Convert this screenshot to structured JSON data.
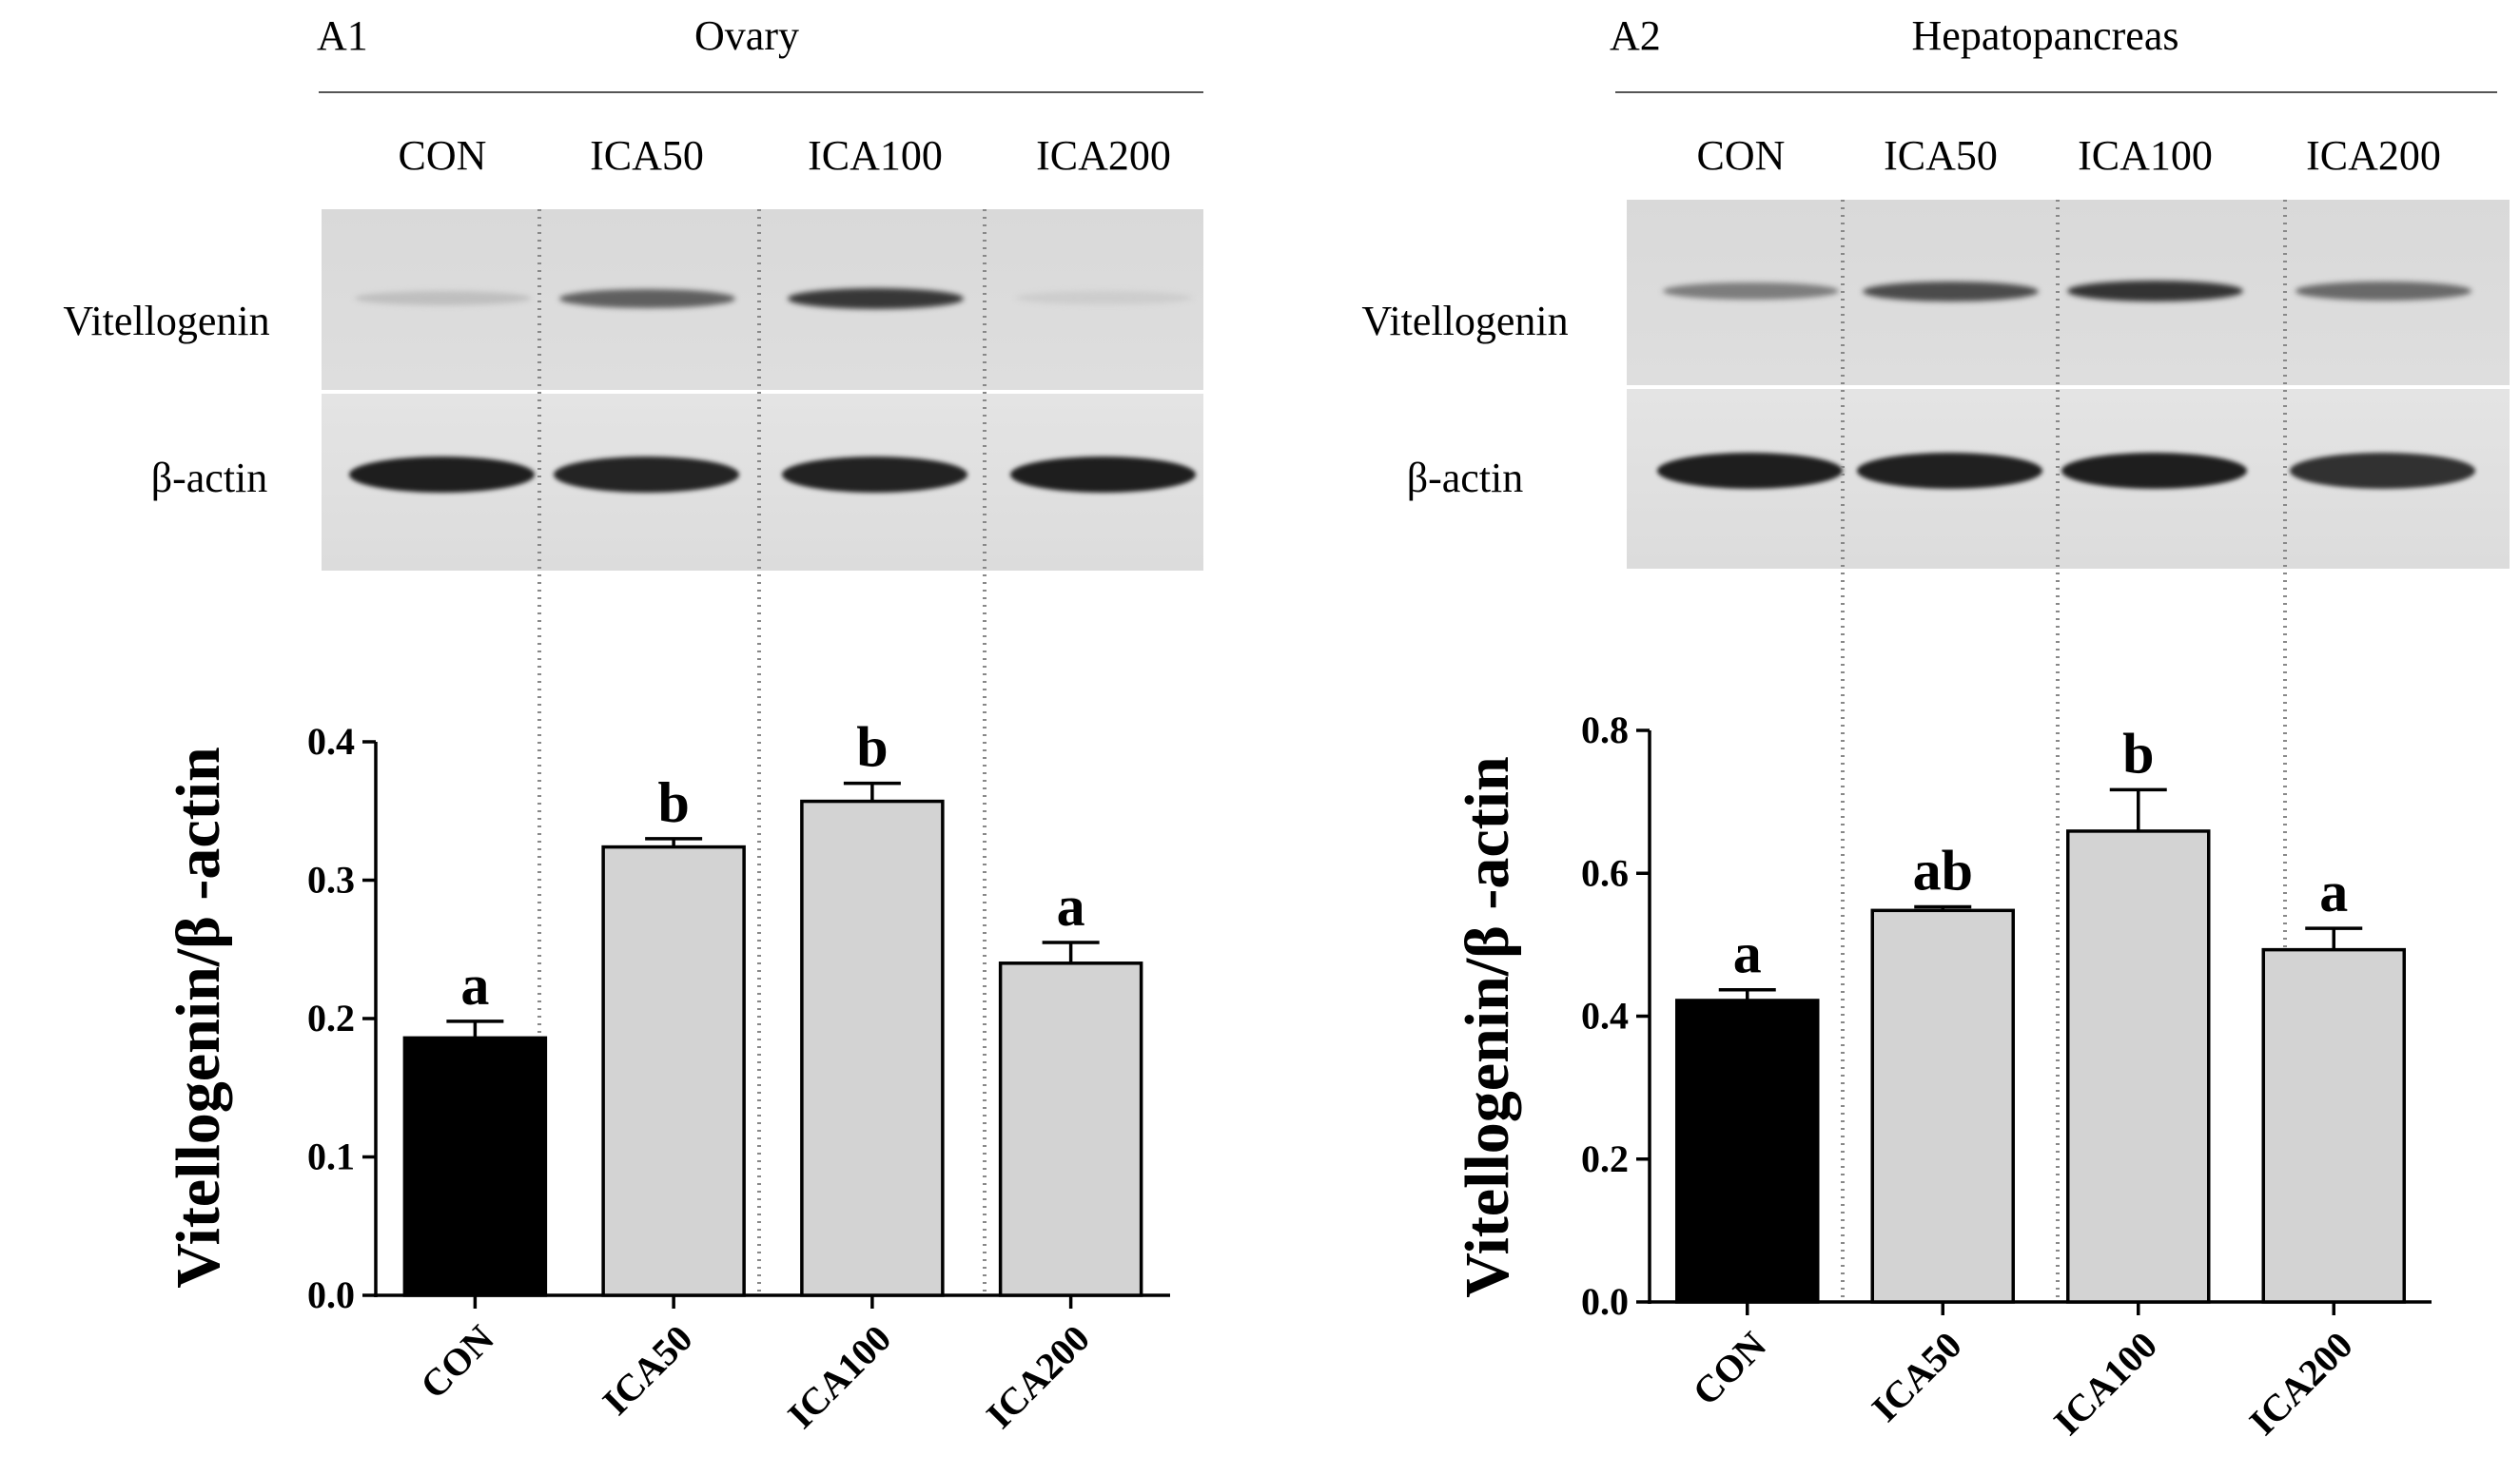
{
  "chart_data": [
    {
      "type": "bar",
      "panel_label": "A1",
      "tissue": "Ovary",
      "blot_rows": [
        "Vitellogenin",
        "β-actin"
      ],
      "categories": [
        "CON",
        "ICA50",
        "ICA100",
        "ICA200"
      ],
      "values": [
        0.186,
        0.324,
        0.357,
        0.24
      ],
      "errors": [
        0.012,
        0.006,
        0.013,
        0.015
      ],
      "significance": [
        "a",
        "b",
        "b",
        "a"
      ],
      "ylabel": "Vitellogenin/β -actin",
      "ylim": [
        0,
        0.4
      ],
      "yticks": [
        "0.0",
        "0.1",
        "0.2",
        "0.3",
        "0.4"
      ],
      "bar_colors": [
        "#000000",
        "#d3d3d3",
        "#d3d3d3",
        "#d3d3d3"
      ],
      "band_intensity": {
        "vitellogenin": [
          0.12,
          0.6,
          0.8,
          0.05
        ],
        "actin": [
          0.95,
          0.92,
          0.93,
          0.95
        ]
      }
    },
    {
      "type": "bar",
      "panel_label": "A2",
      "tissue": "Hepatopancreas",
      "blot_rows": [
        "Vitellogenin",
        "β-actin"
      ],
      "categories": [
        "CON",
        "ICA50",
        "ICA100",
        "ICA200"
      ],
      "values": [
        0.422,
        0.548,
        0.659,
        0.493
      ],
      "errors": [
        0.015,
        0.005,
        0.058,
        0.03
      ],
      "significance": [
        "a",
        "ab",
        "b",
        "a"
      ],
      "ylabel": "Vitellogenin/β -actin",
      "ylim": [
        0,
        0.8
      ],
      "yticks": [
        "0.0",
        "0.2",
        "0.4",
        "0.6",
        "0.8"
      ],
      "bar_colors": [
        "#000000",
        "#d3d3d3",
        "#d3d3d3",
        "#d3d3d3"
      ],
      "band_intensity": {
        "vitellogenin": [
          0.45,
          0.7,
          0.82,
          0.55
        ],
        "actin": [
          0.95,
          0.94,
          0.95,
          0.85
        ]
      }
    }
  ]
}
